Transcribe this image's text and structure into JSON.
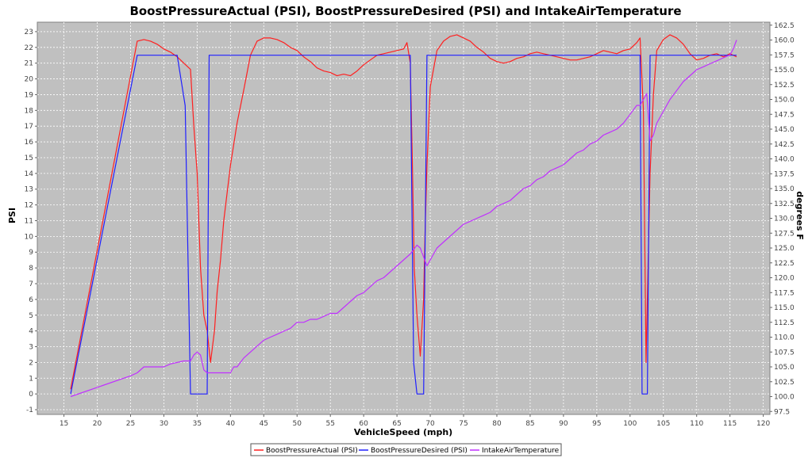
{
  "chart_data": {
    "type": "line",
    "title": "BoostPressureActual (PSI), BoostPressureDesired (PSI) and IntakeAirTemperature",
    "xlabel": "VehicleSpeed (mph)",
    "ylabel": "PSI",
    "y2label": "degrees F",
    "xlim": [
      11,
      121
    ],
    "ylim": [
      -1.3,
      23.6
    ],
    "y2lim": [
      97.0,
      163.0
    ],
    "xticks": [
      15,
      20,
      25,
      30,
      35,
      40,
      45,
      50,
      55,
      60,
      65,
      70,
      75,
      80,
      85,
      90,
      95,
      100,
      105,
      110,
      115,
      120
    ],
    "yticks": [
      -1,
      0,
      1,
      2,
      3,
      4,
      5,
      6,
      7,
      8,
      9,
      10,
      11,
      12,
      13,
      14,
      15,
      16,
      17,
      18,
      19,
      20,
      21,
      22,
      23
    ],
    "y2ticks": [
      "97.5",
      "100.0",
      "102.5",
      "105.0",
      "107.5",
      "110.0",
      "112.5",
      "115.0",
      "117.5",
      "120.0",
      "122.5",
      "125.0",
      "127.5",
      "130.0",
      "132.5",
      "135.0",
      "137.5",
      "140.0",
      "142.5",
      "145.0",
      "147.5",
      "150.0",
      "152.5",
      "155.0",
      "157.5",
      "160.0",
      "162.5"
    ],
    "grid": true,
    "legend": "bottom",
    "colors": {
      "plot_bg": "#c0c0c0",
      "grid": "#ffffff"
    },
    "series": [
      {
        "name": "BoostPressureActual (PSI)",
        "axis": "left",
        "color": "#ff2020",
        "x": [
          16,
          26,
          27,
          28,
          29,
          30,
          31,
          32,
          33,
          34,
          34.5,
          35,
          35.5,
          36,
          36.5,
          37,
          37.3,
          37.6,
          38,
          38.5,
          39,
          40,
          41,
          42,
          43,
          44,
          45,
          46,
          47,
          48,
          49,
          50,
          51,
          52,
          53,
          54,
          55,
          56,
          57,
          58,
          59,
          60,
          61,
          62,
          63,
          64,
          65,
          66,
          66.5,
          67,
          67.3,
          67.6,
          68,
          68.5,
          69,
          69.2,
          69.5,
          70,
          71,
          72,
          73,
          74,
          75,
          76,
          77,
          78,
          79,
          80,
          81,
          82,
          83,
          84,
          85,
          86,
          87,
          88,
          89,
          90,
          91,
          92,
          93,
          94,
          95,
          96,
          97,
          98,
          99,
          100,
          101,
          101.5,
          102,
          102.4,
          102.7,
          103,
          103.5,
          104,
          105,
          106,
          107,
          108,
          109,
          110,
          111,
          112,
          113,
          114,
          115,
          116
        ],
        "y": [
          0.3,
          22.4,
          22.5,
          22.4,
          22.2,
          21.9,
          21.7,
          21.4,
          21.0,
          20.6,
          17.0,
          14.0,
          8.0,
          5.0,
          4.0,
          2.0,
          3.0,
          4.0,
          6.5,
          8.5,
          11.0,
          14.5,
          17.2,
          19.3,
          21.5,
          22.4,
          22.6,
          22.6,
          22.5,
          22.3,
          22.0,
          21.8,
          21.4,
          21.1,
          20.7,
          20.5,
          20.4,
          20.2,
          20.3,
          20.2,
          20.5,
          20.9,
          21.2,
          21.5,
          21.6,
          21.7,
          21.8,
          21.9,
          22.3,
          21.0,
          15.0,
          8.0,
          5.0,
          2.4,
          6.0,
          10.0,
          14.5,
          19.5,
          21.8,
          22.4,
          22.7,
          22.8,
          22.6,
          22.4,
          22.0,
          21.7,
          21.3,
          21.1,
          21.0,
          21.1,
          21.3,
          21.4,
          21.6,
          21.7,
          21.6,
          21.5,
          21.4,
          21.3,
          21.2,
          21.2,
          21.3,
          21.4,
          21.6,
          21.8,
          21.7,
          21.6,
          21.8,
          21.9,
          22.3,
          22.6,
          18.0,
          2.0,
          8.0,
          14.0,
          19.0,
          21.8,
          22.5,
          22.8,
          22.6,
          22.2,
          21.6,
          21.2,
          21.3,
          21.5,
          21.6,
          21.4,
          21.6,
          21.4
        ]
      },
      {
        "name": "BoostPressureDesired (PSI)",
        "axis": "left",
        "color": "#2020ff",
        "x": [
          16,
          26,
          27,
          28,
          29,
          30,
          31,
          32,
          33.2,
          34,
          34.3,
          35,
          35.5,
          36,
          36.5,
          36.8,
          40,
          50,
          60,
          66.5,
          67,
          67.5,
          68,
          68.5,
          69,
          69.5,
          70,
          80,
          90,
          101,
          101.5,
          101.8,
          102.2,
          102.6,
          103,
          110,
          116
        ],
        "y": [
          0,
          21.5,
          21.5,
          21.5,
          21.5,
          21.5,
          21.5,
          21.5,
          18.3,
          0,
          0,
          0,
          0,
          0,
          0,
          21.5,
          21.5,
          21.5,
          21.5,
          21.5,
          21.5,
          2.0,
          0,
          0,
          0,
          21.5,
          21.5,
          21.5,
          21.5,
          21.5,
          21.5,
          0,
          0,
          0,
          21.5,
          21.5,
          21.5
        ]
      },
      {
        "name": "IntakeAirTemperature",
        "axis": "right",
        "color": "#c030ff",
        "x": [
          16,
          25,
          26,
          27,
          30,
          31,
          33,
          34,
          34.5,
          35,
          35.5,
          36,
          36.5,
          37,
          40,
          40.5,
          41,
          42,
          43,
          44,
          45,
          46,
          47,
          48,
          49,
          50,
          51,
          52,
          53,
          54,
          55,
          56,
          57,
          58,
          59,
          60,
          61,
          62,
          63,
          64,
          65,
          66,
          67,
          68,
          68.5,
          69,
          69.5,
          70,
          71,
          72,
          73,
          74,
          75,
          76,
          77,
          78,
          79,
          80,
          81,
          82,
          83,
          84,
          85,
          86,
          87,
          88,
          89,
          90,
          91,
          92,
          93,
          94,
          95,
          96,
          97,
          98,
          99,
          100,
          101,
          101.5,
          102,
          102.5,
          103,
          103.5,
          104,
          105,
          106,
          107,
          108,
          109,
          110,
          111,
          112,
          113,
          114,
          115,
          115.5,
          116
        ],
        "y": [
          100.0,
          103.5,
          104.0,
          105.0,
          105.0,
          105.5,
          106.0,
          106.0,
          107.0,
          107.5,
          107.0,
          104.5,
          104.0,
          104.0,
          104.0,
          105.0,
          105.0,
          106.5,
          107.5,
          108.5,
          109.5,
          110.0,
          110.5,
          111.0,
          111.5,
          112.5,
          112.5,
          113.0,
          113.0,
          113.5,
          114.0,
          114.0,
          115.0,
          116.0,
          117.0,
          117.5,
          118.5,
          119.5,
          120.0,
          121.0,
          122.0,
          123.0,
          124.0,
          125.5,
          125.0,
          123.5,
          122.0,
          123.0,
          125.0,
          126.0,
          127.0,
          128.0,
          129.0,
          129.5,
          130.0,
          130.5,
          131.0,
          132.0,
          132.5,
          133.0,
          134.0,
          135.0,
          135.5,
          136.5,
          137.0,
          138.0,
          138.5,
          139.0,
          140.0,
          141.0,
          141.5,
          142.5,
          143.0,
          144.0,
          144.5,
          145.0,
          146.0,
          147.5,
          149.0,
          149.0,
          150.0,
          151.0,
          143.0,
          144.0,
          146.0,
          148.0,
          150.0,
          151.5,
          153.0,
          154.0,
          155.0,
          155.5,
          156.0,
          156.5,
          157.0,
          157.5,
          158.5,
          160.0
        ]
      }
    ]
  }
}
